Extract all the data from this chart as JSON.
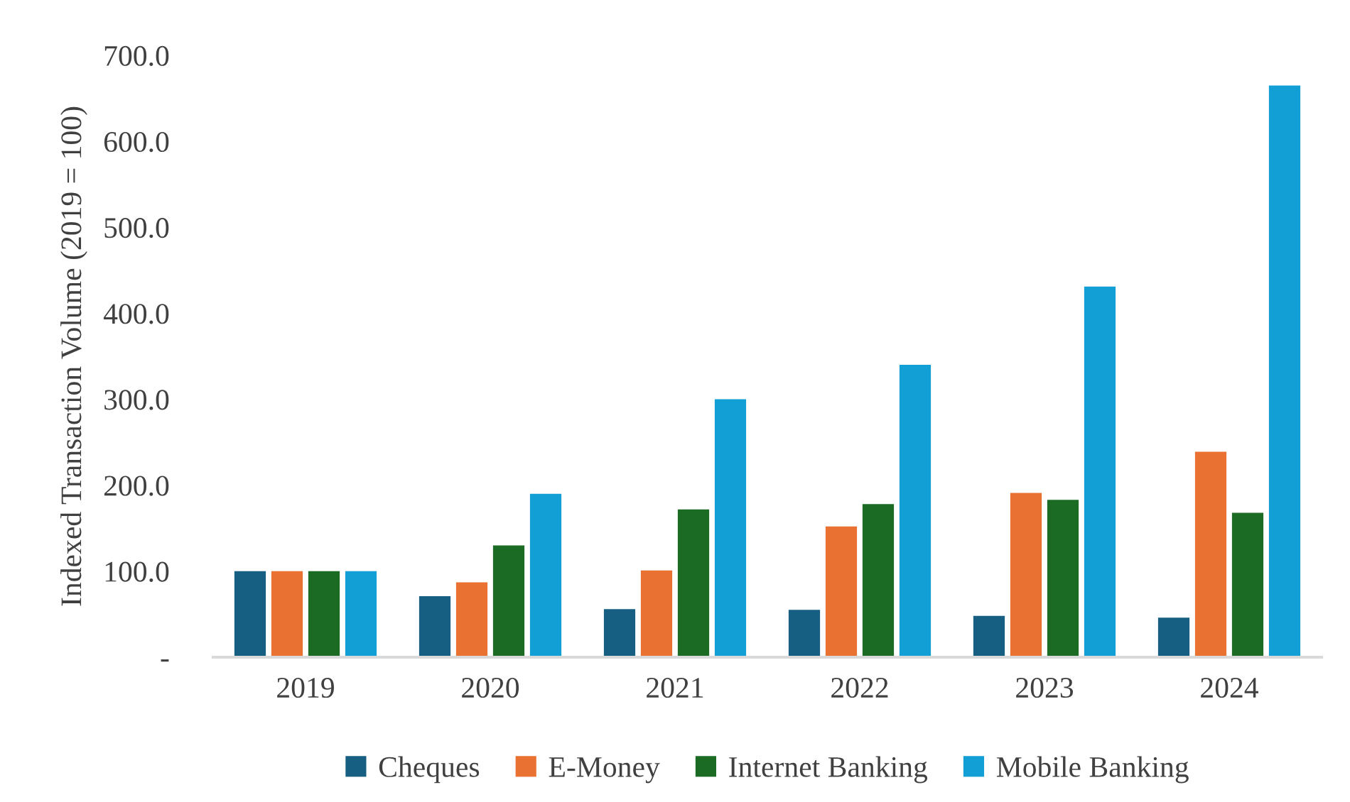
{
  "chart_data": {
    "type": "bar",
    "ylabel": "Indexed Transaction Volume (2019 = 100)",
    "categories": [
      "2019",
      "2020",
      "2021",
      "2022",
      "2023",
      "2024"
    ],
    "series": [
      {
        "name": "Cheques",
        "color": "#175f82",
        "values": [
          100,
          71,
          56,
          55,
          48,
          46
        ]
      },
      {
        "name": "E-Money",
        "color": "#e97132",
        "values": [
          100,
          87,
          101,
          152,
          191,
          239
        ]
      },
      {
        "name": "Internet Banking",
        "color": "#1b6b24",
        "values": [
          100,
          130,
          172,
          178,
          183,
          168
        ]
      },
      {
        "name": "Mobile Banking",
        "color": "#119fd6",
        "values": [
          100,
          190,
          300,
          340,
          431,
          665
        ]
      }
    ],
    "ylim": [
      0,
      700
    ],
    "yticks": [
      {
        "value": 0,
        "label": "-"
      },
      {
        "value": 100,
        "label": "100.0"
      },
      {
        "value": 200,
        "label": "200.0"
      },
      {
        "value": 300,
        "label": "300.0"
      },
      {
        "value": 400,
        "label": "400.0"
      },
      {
        "value": 500,
        "label": "500.0"
      },
      {
        "value": 600,
        "label": "600.0"
      },
      {
        "value": 700,
        "label": "700.0"
      }
    ],
    "grid": false,
    "legend": "bottom"
  }
}
